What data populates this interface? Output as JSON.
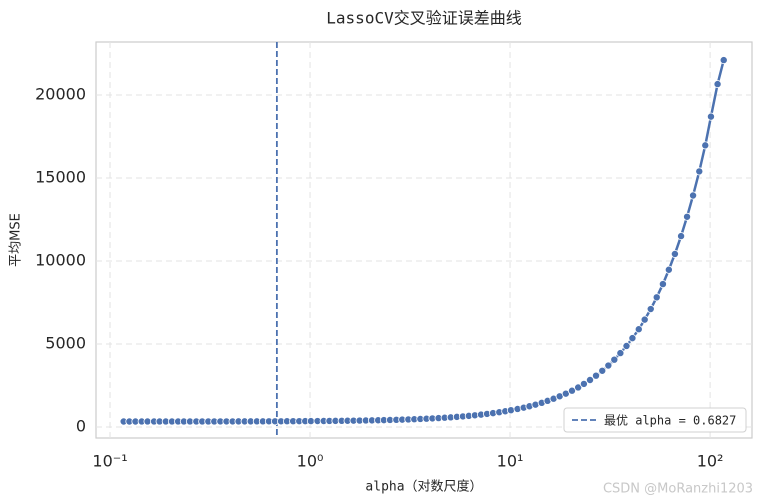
{
  "chart_data": {
    "type": "line",
    "title": "LassoCV交叉验证误差曲线",
    "x_label": "alpha（对数尺度）",
    "y_label": "平均MSE",
    "watermark": "CSDN @MoRanzhi1203",
    "x_scale": "log",
    "x": [
      0.117,
      0.125,
      0.134,
      0.144,
      0.154,
      0.166,
      0.177,
      0.19,
      0.204,
      0.219,
      0.234,
      0.251,
      0.27,
      0.289,
      0.31,
      0.332,
      0.356,
      0.382,
      0.41,
      0.439,
      0.471,
      0.505,
      0.542,
      0.581,
      0.623,
      0.668,
      0.716,
      0.767,
      0.823,
      0.883,
      0.946,
      1.01,
      1.09,
      1.17,
      1.25,
      1.34,
      1.44,
      1.54,
      1.65,
      1.77,
      1.9,
      2.04,
      2.19,
      2.34,
      2.51,
      2.7,
      2.89,
      3.1,
      3.32,
      3.56,
      3.82,
      4.09,
      4.39,
      4.71,
      5.05,
      5.42,
      5.81,
      6.22,
      6.67,
      7.16,
      7.67,
      8.22,
      8.83,
      9.46,
      10.1,
      10.9,
      11.7,
      12.5,
      13.4,
      14.4,
      15.4,
      16.5,
      17.7,
      19.0,
      20.4,
      21.9,
      23.4,
      25.1,
      26.9,
      28.9,
      31.0,
      33.2,
      35.6,
      38.2,
      40.9,
      44.0,
      47.1,
      50.5,
      54.1,
      58.1,
      62.2,
      66.7,
      71.6,
      76.7,
      82.2,
      88.3,
      94.6,
      101,
      109,
      117
    ],
    "values": [
      331,
      331,
      331,
      332,
      332,
      332,
      332,
      332,
      333,
      333,
      333,
      333,
      334,
      334,
      335,
      335,
      336,
      336,
      337,
      338,
      338,
      339,
      340,
      341,
      343,
      344,
      345,
      347,
      349,
      351,
      353,
      355,
      358,
      361,
      364,
      368,
      372,
      376,
      381,
      387,
      392,
      399,
      406,
      414,
      423,
      433,
      444,
      455,
      468,
      483,
      499,
      517,
      537,
      558,
      582,
      609,
      638,
      670,
      705,
      745,
      788,
      836,
      890,
      948,
      1012,
      1085,
      1164,
      1250,
      1346,
      1457,
      1575,
      1704,
      1851,
      2009,
      2184,
      2381,
      2595,
      2830,
      3091,
      3385,
      3703,
      4054,
      4451,
      4880,
      5353,
      5889,
      6468,
      7106,
      7812,
      8609,
      9471,
      10423,
      11499,
      12661,
      13944,
      15396,
      16964,
      18695,
      20654,
      22100
    ],
    "color": "#4c72b0",
    "vline": {
      "value": 0.6827,
      "label": "最优 alpha = 0.6827"
    },
    "legend": "lower right",
    "grid": true,
    "xlim": [
      0.0851,
      162
    ],
    "xticks": [
      {
        "value": 0.1,
        "label": "10⁻¹"
      },
      {
        "value": 1,
        "label": "10⁰"
      },
      {
        "value": 10,
        "label": "10¹"
      },
      {
        "value": 100,
        "label": "10²"
      }
    ],
    "ylim": [
      -663,
      23190
    ],
    "yticks": [
      0,
      5000,
      10000,
      15000,
      20000
    ]
  }
}
